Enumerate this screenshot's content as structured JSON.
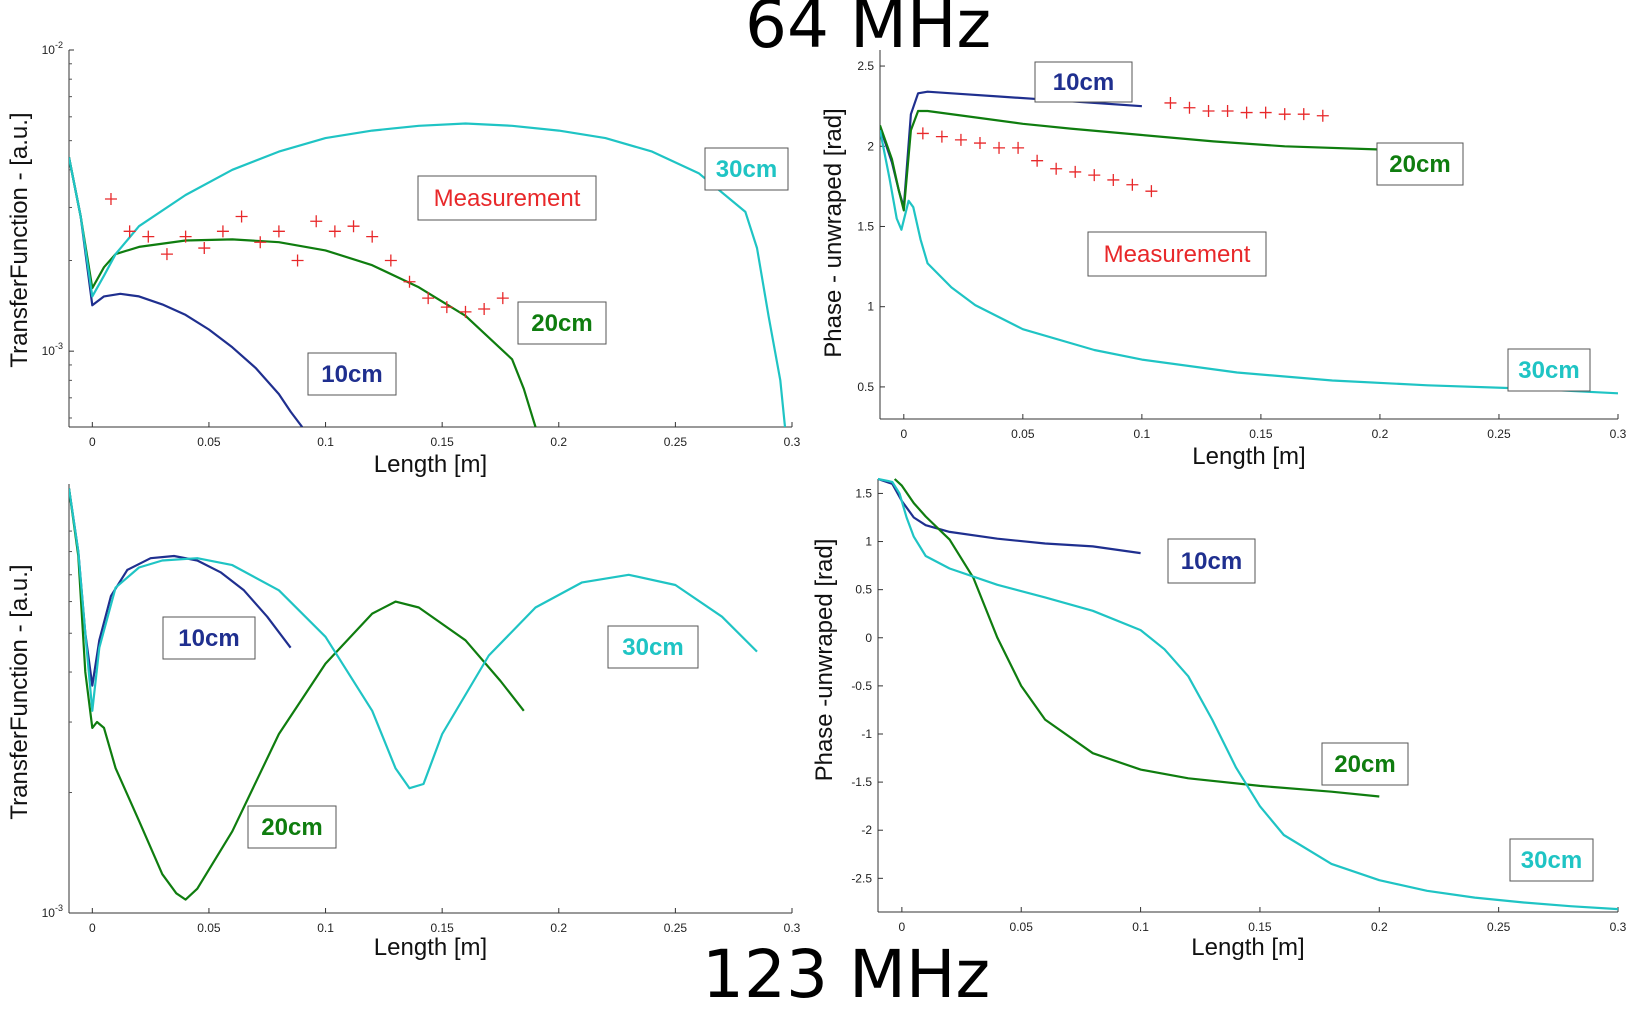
{
  "titles": {
    "top": "64 MHz",
    "bottom": "123 MHz"
  },
  "colors": {
    "10cm": "#1f2f8f",
    "20cm": "#0f7d0f",
    "30cm": "#1fc4c4",
    "measurement": "#e8282a"
  },
  "chart_data": [
    {
      "type": "line",
      "xlabel": "Length [m]",
      "ylabel": "TransferFunction - [a.u.]",
      "yscale": "log",
      "xlim": [
        -0.01,
        0.3
      ],
      "ylim": [
        0.00056,
        0.01
      ],
      "xticks": [
        0,
        0.05,
        0.1,
        0.15,
        0.2,
        0.25,
        0.3
      ],
      "xtick_labels": [
        "0",
        "0.05",
        "0.1",
        "0.15",
        "0.2",
        "0.25",
        "0.3"
      ],
      "yticks": [
        0.001,
        0.01
      ],
      "ytick_labels": [
        {
          "base": "10",
          "exp": "-3"
        },
        {
          "base": "10",
          "exp": "-2"
        }
      ],
      "series": [
        {
          "name": "10cm",
          "color_key": "10cm",
          "x": [
            -0.01,
            -0.005,
            0,
            0.005,
            0.012,
            0.02,
            0.03,
            0.04,
            0.05,
            0.06,
            0.07,
            0.08,
            0.085,
            0.09
          ],
          "y": [
            0.0044,
            0.0028,
            0.00142,
            0.00152,
            0.00155,
            0.00152,
            0.00143,
            0.00132,
            0.00118,
            0.00103,
            0.00088,
            0.00072,
            0.00063,
            0.00056
          ]
        },
        {
          "name": "20cm",
          "color_key": "20cm",
          "x": [
            -0.01,
            -0.005,
            0,
            0.005,
            0.01,
            0.02,
            0.04,
            0.06,
            0.08,
            0.1,
            0.12,
            0.14,
            0.16,
            0.18,
            0.185,
            0.19
          ],
          "y": [
            0.0044,
            0.0028,
            0.00162,
            0.0019,
            0.0021,
            0.00222,
            0.00233,
            0.00235,
            0.0023,
            0.00216,
            0.00193,
            0.00163,
            0.00131,
            0.00094,
            0.00075,
            0.00056
          ]
        },
        {
          "name": "30cm",
          "color_key": "30cm",
          "x": [
            -0.01,
            -0.005,
            0,
            0.005,
            0.01,
            0.02,
            0.04,
            0.06,
            0.08,
            0.1,
            0.12,
            0.14,
            0.16,
            0.18,
            0.2,
            0.22,
            0.24,
            0.26,
            0.28,
            0.285,
            0.29,
            0.295,
            0.297
          ],
          "y": [
            0.0044,
            0.0028,
            0.00152,
            0.00178,
            0.0021,
            0.0026,
            0.0033,
            0.004,
            0.0046,
            0.0051,
            0.0054,
            0.0056,
            0.0057,
            0.0056,
            0.0054,
            0.0051,
            0.0046,
            0.0039,
            0.0029,
            0.0022,
            0.0013,
            0.0008,
            0.00056
          ]
        },
        {
          "name": "Measurement",
          "color_key": "measurement",
          "marker": "+",
          "x": [
            0.008,
            0.016,
            0.024,
            0.032,
            0.04,
            0.048,
            0.056,
            0.064,
            0.072,
            0.08,
            0.088,
            0.096,
            0.104,
            0.112,
            0.12,
            0.128,
            0.136,
            0.144,
            0.152,
            0.16,
            0.168,
            0.176
          ],
          "y": [
            0.0032,
            0.0025,
            0.0024,
            0.0021,
            0.0024,
            0.0022,
            0.0025,
            0.0028,
            0.0023,
            0.0025,
            0.002,
            0.0027,
            0.0025,
            0.0026,
            0.0024,
            0.002,
            0.0017,
            0.0015,
            0.0014,
            0.00135,
            0.00138,
            0.0015
          ]
        }
      ],
      "annotations": [
        {
          "text": "Measurement",
          "color_key": "measurement",
          "style": "normal"
        },
        {
          "text": "30cm",
          "color_key": "30cm",
          "style": "bold"
        },
        {
          "text": "20cm",
          "color_key": "20cm",
          "style": "bold"
        },
        {
          "text": "10cm",
          "color_key": "10cm",
          "style": "bold"
        }
      ]
    },
    {
      "type": "line",
      "xlabel": "Length [m]",
      "ylabel": "Phase - unwraped [rad]",
      "xlim": [
        -0.01,
        0.3
      ],
      "ylim": [
        0.3,
        2.6
      ],
      "xticks": [
        0,
        0.05,
        0.1,
        0.15,
        0.2,
        0.25,
        0.3
      ],
      "xtick_labels": [
        "0",
        "0.05",
        "0.1",
        "0.15",
        "0.2",
        "0.25",
        "0.3"
      ],
      "yticks": [
        0.5,
        1,
        1.5,
        2,
        2.5
      ],
      "ytick_labels": [
        "0.5",
        "1",
        "1.5",
        "2",
        "2.5"
      ],
      "series": [
        {
          "name": "10cm",
          "color_key": "10cm",
          "x": [
            -0.01,
            -0.005,
            -0.002,
            0,
            0.003,
            0.006,
            0.01,
            0.02,
            0.04,
            0.06,
            0.08,
            0.1
          ],
          "y": [
            2.12,
            1.9,
            1.72,
            1.62,
            2.2,
            2.33,
            2.34,
            2.33,
            2.31,
            2.29,
            2.27,
            2.25
          ]
        },
        {
          "name": "20cm",
          "color_key": "20cm",
          "x": [
            -0.01,
            -0.005,
            -0.002,
            0,
            0.003,
            0.006,
            0.01,
            0.03,
            0.05,
            0.07,
            0.1,
            0.13,
            0.16,
            0.2
          ],
          "y": [
            2.13,
            1.92,
            1.72,
            1.6,
            2.1,
            2.22,
            2.22,
            2.18,
            2.14,
            2.11,
            2.07,
            2.03,
            2.0,
            1.98
          ]
        },
        {
          "name": "30cm",
          "color_key": "30cm",
          "x": [
            -0.01,
            -0.006,
            -0.003,
            -0.001,
            0.002,
            0.004,
            0.007,
            0.01,
            0.02,
            0.03,
            0.05,
            0.08,
            0.1,
            0.14,
            0.18,
            0.22,
            0.26,
            0.3
          ],
          "y": [
            2.1,
            1.8,
            1.55,
            1.48,
            1.66,
            1.62,
            1.42,
            1.27,
            1.12,
            1.01,
            0.86,
            0.73,
            0.67,
            0.59,
            0.54,
            0.51,
            0.49,
            0.46
          ]
        },
        {
          "name": "Measurement",
          "color_key": "measurement",
          "marker": "+",
          "x": [
            0.008,
            0.016,
            0.024,
            0.032,
            0.04,
            0.048,
            0.056,
            0.064,
            0.072,
            0.08,
            0.088,
            0.096,
            0.104,
            0.112,
            0.12,
            0.128,
            0.136,
            0.144,
            0.152,
            0.16,
            0.168,
            0.176
          ],
          "y": [
            2.08,
            2.06,
            2.04,
            2.02,
            1.99,
            1.99,
            1.91,
            1.86,
            1.84,
            1.82,
            1.79,
            1.76,
            1.72,
            2.27,
            2.24,
            2.22,
            2.22,
            2.21,
            2.21,
            2.2,
            2.2,
            2.19
          ]
        }
      ],
      "annotations": [
        {
          "text": "10cm",
          "color_key": "10cm",
          "style": "bold"
        },
        {
          "text": "20cm",
          "color_key": "20cm",
          "style": "bold"
        },
        {
          "text": "Measurement",
          "color_key": "measurement",
          "style": "normal"
        },
        {
          "text": "30cm",
          "color_key": "30cm",
          "style": "bold"
        }
      ]
    },
    {
      "type": "line",
      "xlabel": "Length [m]",
      "ylabel": "TransferFunction - [a.u.]",
      "yscale": "log",
      "xlim": [
        -0.01,
        0.3
      ],
      "ylim": [
        0.001,
        0.0118
      ],
      "xticks": [
        0,
        0.05,
        0.1,
        0.15,
        0.2,
        0.25,
        0.3
      ],
      "xtick_labels": [
        "0",
        "0.05",
        "0.1",
        "0.15",
        "0.2",
        "0.25",
        "0.3"
      ],
      "yticks": [
        0.001
      ],
      "ytick_labels": [
        {
          "base": "10",
          "exp": "-3"
        }
      ],
      "series": [
        {
          "name": "10cm",
          "color_key": "10cm",
          "x": [
            -0.01,
            -0.006,
            -0.003,
            0,
            0.003,
            0.008,
            0.015,
            0.025,
            0.035,
            0.045,
            0.055,
            0.065,
            0.075,
            0.085
          ],
          "y": [
            0.0115,
            0.008,
            0.005,
            0.0037,
            0.0048,
            0.0062,
            0.0072,
            0.0077,
            0.0078,
            0.0076,
            0.0071,
            0.0064,
            0.0055,
            0.0046
          ]
        },
        {
          "name": "20cm",
          "color_key": "20cm",
          "x": [
            -0.01,
            -0.006,
            -0.003,
            0,
            0.002,
            0.005,
            0.01,
            0.02,
            0.03,
            0.036,
            0.04,
            0.045,
            0.06,
            0.08,
            0.1,
            0.12,
            0.13,
            0.14,
            0.16,
            0.175,
            0.185
          ],
          "y": [
            0.0115,
            0.0078,
            0.004,
            0.0029,
            0.003,
            0.0029,
            0.0023,
            0.0017,
            0.00125,
            0.00112,
            0.00108,
            0.00115,
            0.0016,
            0.0028,
            0.0042,
            0.0056,
            0.006,
            0.0058,
            0.0048,
            0.0038,
            0.0032
          ]
        },
        {
          "name": "30cm",
          "color_key": "30cm",
          "x": [
            -0.01,
            -0.006,
            -0.003,
            0,
            0.003,
            0.01,
            0.02,
            0.03,
            0.045,
            0.06,
            0.08,
            0.1,
            0.12,
            0.13,
            0.136,
            0.142,
            0.15,
            0.17,
            0.19,
            0.21,
            0.23,
            0.25,
            0.27,
            0.285
          ],
          "y": [
            0.0115,
            0.008,
            0.005,
            0.0032,
            0.0046,
            0.0065,
            0.0073,
            0.0076,
            0.0077,
            0.0074,
            0.0064,
            0.0049,
            0.0032,
            0.0023,
            0.00205,
            0.0021,
            0.0028,
            0.0044,
            0.0058,
            0.0067,
            0.007,
            0.0066,
            0.0055,
            0.0045
          ]
        }
      ],
      "annotations": [
        {
          "text": "10cm",
          "color_key": "10cm",
          "style": "bold"
        },
        {
          "text": "30cm",
          "color_key": "30cm",
          "style": "bold"
        },
        {
          "text": "20cm",
          "color_key": "20cm",
          "style": "bold"
        }
      ]
    },
    {
      "type": "line",
      "xlabel": "Length [m]",
      "ylabel": "Phase -unwraped [rad]",
      "xlim": [
        -0.01,
        0.3
      ],
      "ylim": [
        -2.85,
        1.65
      ],
      "xticks": [
        0,
        0.05,
        0.1,
        0.15,
        0.2,
        0.25,
        0.3
      ],
      "xtick_labels": [
        "0",
        "0.05",
        "0.1",
        "0.15",
        "0.2",
        "0.25",
        "0.3"
      ],
      "yticks": [
        -2.5,
        -2,
        -1.5,
        -1,
        -0.5,
        0,
        0.5,
        1,
        1.5
      ],
      "ytick_labels": [
        "-2.5",
        "-2",
        "-1.5",
        "-1",
        "-0.5",
        "0",
        "0.5",
        "1",
        "1.5"
      ],
      "series": [
        {
          "name": "10cm",
          "color_key": "10cm",
          "x": [
            -0.01,
            -0.004,
            0,
            0.005,
            0.01,
            0.02,
            0.04,
            0.06,
            0.08,
            0.1
          ],
          "y": [
            1.65,
            1.6,
            1.42,
            1.25,
            1.17,
            1.1,
            1.03,
            0.98,
            0.95,
            0.88
          ]
        },
        {
          "name": "20cm",
          "color_key": "20cm",
          "x": [
            -0.003,
            0,
            0.005,
            0.01,
            0.02,
            0.03,
            0.04,
            0.05,
            0.06,
            0.08,
            0.1,
            0.12,
            0.15,
            0.18,
            0.2
          ],
          "y": [
            1.65,
            1.58,
            1.4,
            1.26,
            1.02,
            0.62,
            0.0,
            -0.5,
            -0.85,
            -1.2,
            -1.37,
            -1.46,
            -1.54,
            -1.6,
            -1.65
          ]
        },
        {
          "name": "30cm",
          "color_key": "30cm",
          "x": [
            -0.01,
            -0.004,
            -0.001,
            0.002,
            0.005,
            0.01,
            0.02,
            0.04,
            0.06,
            0.08,
            0.1,
            0.11,
            0.12,
            0.13,
            0.14,
            0.15,
            0.16,
            0.18,
            0.2,
            0.22,
            0.24,
            0.26,
            0.28,
            0.3
          ],
          "y": [
            1.65,
            1.62,
            1.5,
            1.25,
            1.05,
            0.85,
            0.72,
            0.55,
            0.42,
            0.28,
            0.08,
            -0.12,
            -0.4,
            -0.85,
            -1.35,
            -1.75,
            -2.05,
            -2.35,
            -2.52,
            -2.63,
            -2.7,
            -2.75,
            -2.79,
            -2.82
          ]
        }
      ],
      "annotations": [
        {
          "text": "10cm",
          "color_key": "10cm",
          "style": "bold"
        },
        {
          "text": "20cm",
          "color_key": "20cm",
          "style": "bold"
        },
        {
          "text": "30cm",
          "color_key": "30cm",
          "style": "bold"
        }
      ]
    }
  ]
}
